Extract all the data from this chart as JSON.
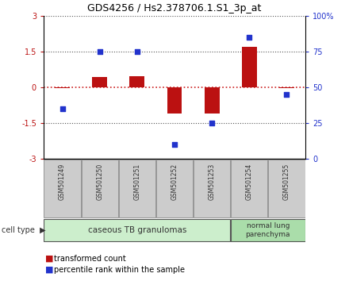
{
  "title": "GDS4256 / Hs2.378706.1.S1_3p_at",
  "samples": [
    "GSM501249",
    "GSM501250",
    "GSM501251",
    "GSM501252",
    "GSM501253",
    "GSM501254",
    "GSM501255"
  ],
  "red_values": [
    -0.04,
    0.42,
    0.47,
    -1.1,
    -1.1,
    1.7,
    -0.04
  ],
  "blue_values_pct": [
    35,
    75,
    75,
    10,
    25,
    85,
    45
  ],
  "ylim_left": [
    -3,
    3
  ],
  "ylim_right": [
    0,
    100
  ],
  "yticks_left": [
    -3,
    -1.5,
    0,
    1.5,
    3
  ],
  "ytick_labels_left": [
    "-3",
    "-1.5",
    "0",
    "1.5",
    "3"
  ],
  "yticks_right": [
    0,
    25,
    50,
    75,
    100
  ],
  "ytick_labels_right": [
    "0",
    "25",
    "50",
    "75",
    "100%"
  ],
  "red_color": "#bb1111",
  "blue_color": "#2233cc",
  "bar_width": 0.4,
  "group0_label": "caseous TB granulomas",
  "group0_color": "#cceecc",
  "group0_samples": [
    0,
    1,
    2,
    3,
    4
  ],
  "group1_label": "normal lung\nparenchyma",
  "group1_color": "#aaddaa",
  "group1_samples": [
    5,
    6
  ],
  "cell_type_label": "cell type",
  "legend_red": "transformed count",
  "legend_blue": "percentile rank within the sample",
  "dotted_color": "#555555",
  "zero_line_color": "#cc2222",
  "sample_box_color": "#cccccc",
  "sample_box_edge": "#888888"
}
